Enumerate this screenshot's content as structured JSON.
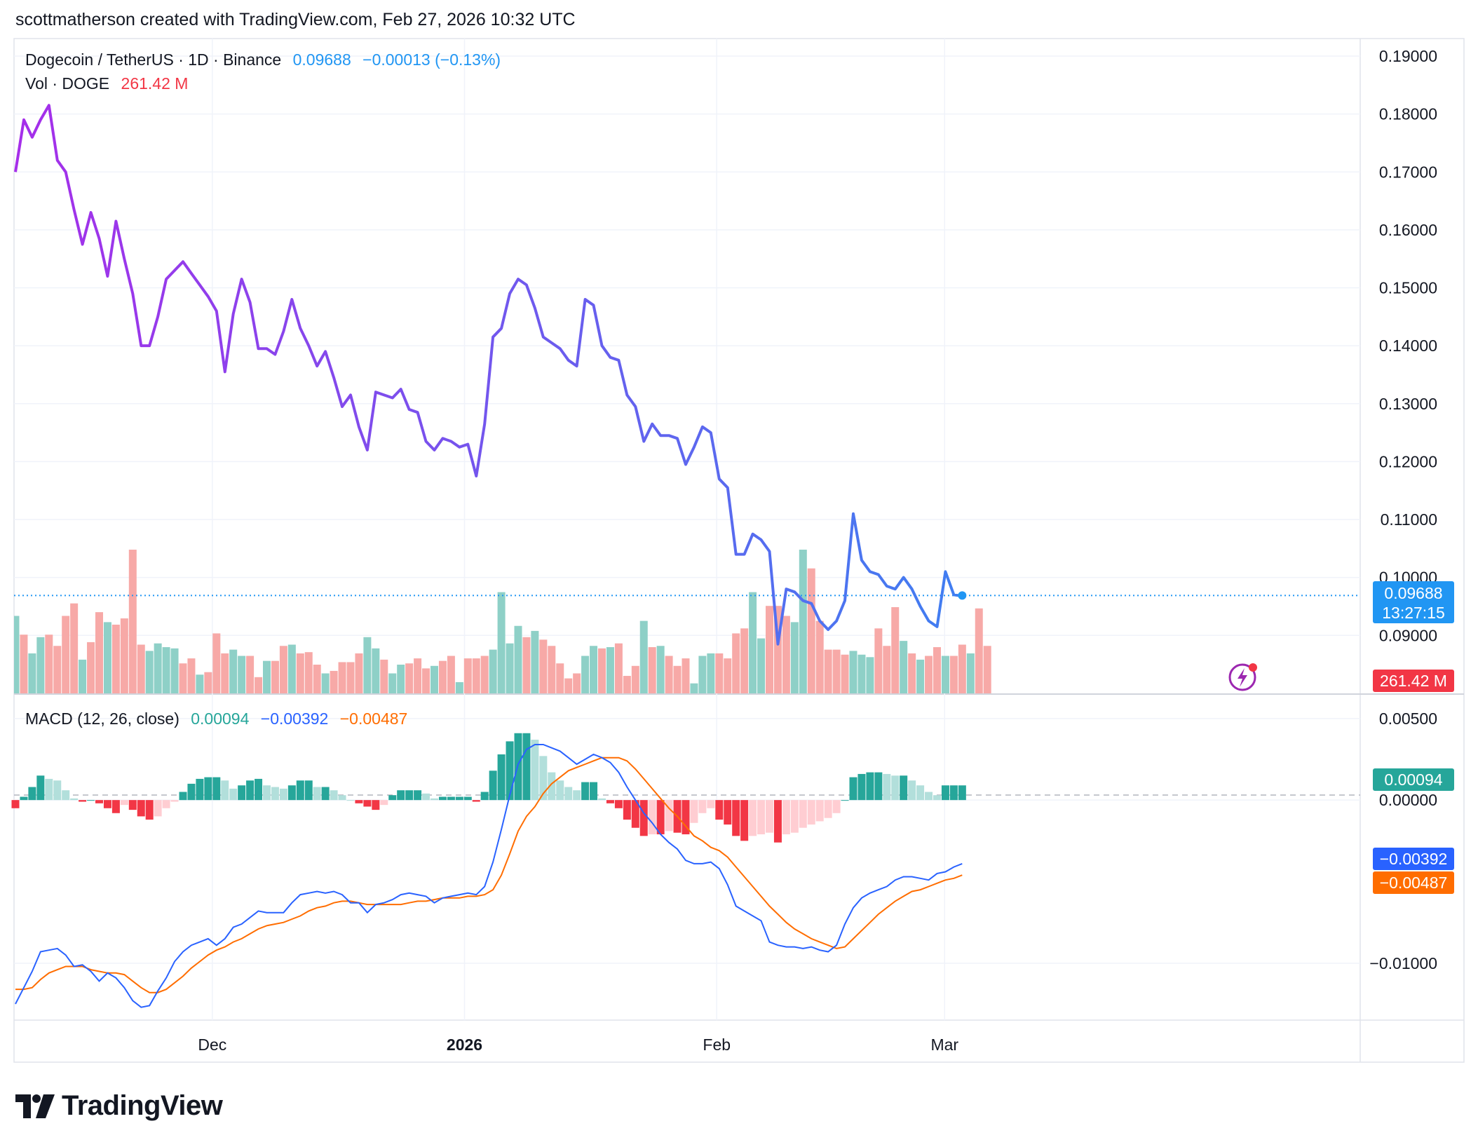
{
  "credit": "scottmatherson created with TradingView.com, Feb 27, 2026 10:32 UTC",
  "legend": {
    "symbol": "Dogecoin / TetherUS · 1D · Binance",
    "price": "0.09688",
    "change": "−0.00013 (−0.13%)",
    "vol_label": "Vol · DOGE",
    "vol_value": "261.42 M",
    "macd_label": "MACD (12, 26, close)",
    "macd_hist": "0.00094",
    "macd_line": "−0.00392",
    "macd_signal": "−0.00487"
  },
  "badges": {
    "price": "0.09688",
    "countdown": "13:27:15",
    "volume": "261.42 M",
    "hist": "0.00094",
    "macd": "−0.00392",
    "signal": "−0.00487"
  },
  "logo_text": "TradingView",
  "colors": {
    "up": "#26a69a",
    "down": "#f23645",
    "up_light": "#b2dfdb",
    "down_light": "#ffcdd2",
    "price_start": "#a62eea",
    "price_end": "#2196f3",
    "macd": "#2962ff",
    "signal": "#ff6d00"
  },
  "chart_data": [
    {
      "type": "line",
      "series_label": "Dogecoin / TetherUS · 1D · Binance",
      "x_axis": {
        "labels": [
          "Dec",
          "2026",
          "Feb",
          "Mar"
        ]
      },
      "y_axis": {
        "ticks": [
          "0.19000",
          "0.18000",
          "0.17000",
          "0.16000",
          "0.15000",
          "0.14000",
          "0.13000",
          "0.12000",
          "0.11000",
          "0.10000",
          "0.09000"
        ],
        "ylim": [
          0.08,
          0.19
        ]
      },
      "last_value": 0.09688,
      "values": [
        0.17,
        0.179,
        0.176,
        0.179,
        0.1815,
        0.172,
        0.17,
        0.1635,
        0.1575,
        0.163,
        0.1585,
        0.152,
        0.1615,
        0.155,
        0.149,
        0.14,
        0.14,
        0.145,
        0.1515,
        0.153,
        0.1545,
        0.1525,
        0.1505,
        0.1485,
        0.146,
        0.1355,
        0.1455,
        0.1515,
        0.1475,
        0.1395,
        0.1395,
        0.1385,
        0.1425,
        0.148,
        0.143,
        0.14,
        0.1365,
        0.139,
        0.1345,
        0.1295,
        0.1315,
        0.126,
        0.122,
        0.132,
        0.1315,
        0.131,
        0.1325,
        0.129,
        0.1285,
        0.1235,
        0.122,
        0.124,
        0.1235,
        0.1225,
        0.123,
        0.1175,
        0.1265,
        0.1415,
        0.143,
        0.149,
        0.1515,
        0.1505,
        0.1465,
        0.1415,
        0.1405,
        0.1395,
        0.1375,
        0.1365,
        0.148,
        0.147,
        0.14,
        0.138,
        0.1375,
        0.1315,
        0.1295,
        0.1235,
        0.1265,
        0.1245,
        0.1245,
        0.124,
        0.1195,
        0.1225,
        0.126,
        0.125,
        0.117,
        0.1155,
        0.104,
        0.104,
        0.1075,
        0.1065,
        0.1045,
        0.0885,
        0.098,
        0.0975,
        0.096,
        0.0955,
        0.0925,
        0.091,
        0.0925,
        0.096,
        0.111,
        0.103,
        0.101,
        0.1005,
        0.0985,
        0.098,
        0.1,
        0.098,
        0.095,
        0.0925,
        0.0915,
        0.101,
        0.097,
        0.0968
      ]
    },
    {
      "type": "bar",
      "series_label": "Vol · DOGE",
      "last_value": "261.42 M",
      "values": [
        62,
        47,
        32,
        45,
        47,
        38,
        62,
        72,
        27,
        41,
        65,
        57,
        55,
        60,
        115,
        39,
        34,
        40,
        37,
        36,
        24,
        28,
        15,
        17,
        48,
        32,
        35,
        30,
        30,
        13,
        26,
        26,
        38,
        39,
        32,
        33,
        23,
        16,
        18,
        25,
        25,
        32,
        45,
        36,
        27,
        16,
        23,
        24,
        28,
        20,
        22,
        26,
        30,
        9,
        28,
        28,
        30,
        35,
        81,
        40,
        54,
        45,
        50,
        43,
        38,
        24,
        12,
        16,
        30,
        38,
        36,
        37,
        40,
        14,
        22,
        58,
        37,
        38,
        30,
        22,
        28,
        8,
        30,
        32,
        32,
        28,
        48,
        52,
        81,
        44,
        70,
        70,
        62,
        57,
        115,
        100,
        58,
        35,
        35,
        31,
        34,
        31,
        29,
        52,
        38,
        69,
        42,
        32,
        27,
        30,
        37,
        30,
        30,
        39,
        32,
        68,
        38
      ],
      "up": [
        true,
        false,
        true,
        true,
        false,
        false,
        false,
        false,
        true,
        false,
        false,
        true,
        false,
        false,
        false,
        false,
        true,
        true,
        true,
        true,
        false,
        false,
        true,
        false,
        false,
        false,
        true,
        true,
        false,
        false,
        true,
        false,
        false,
        true,
        false,
        false,
        false,
        true,
        false,
        false,
        false,
        false,
        true,
        true,
        false,
        true,
        true,
        false,
        false,
        false,
        true,
        false,
        false,
        true,
        false,
        false,
        false,
        true,
        true,
        true,
        true,
        false,
        true,
        false,
        false,
        false,
        false,
        false,
        true,
        true,
        false,
        true,
        false,
        false,
        false,
        true,
        false,
        true,
        false,
        false,
        false,
        true,
        true,
        true,
        false,
        false,
        false,
        false,
        true,
        true,
        false,
        false,
        false,
        true,
        true,
        false,
        false,
        false,
        false,
        false,
        true,
        true,
        true,
        false,
        false,
        false,
        true,
        false,
        true,
        false,
        false,
        true,
        false,
        false,
        true,
        false,
        false
      ],
      "scale": {
        "axis_min": 0.08,
        "axis_max": 0.19,
        "note": "relative volume levels"
      }
    },
    {
      "type": "bar",
      "series_label": "MACD (12, 26, close)",
      "y_axis": {
        "ticks": [
          "0.00500",
          "0.00000",
          "−0.01000"
        ],
        "ylim": [
          -0.0125,
          0.00525
        ]
      },
      "histogram": [
        -0.0005,
        0.0002,
        0.0008,
        0.0015,
        0.0013,
        0.0012,
        0.0006,
        0.0001,
        -0.0001,
        0.0,
        -0.0002,
        -0.0005,
        -0.0008,
        -0.0003,
        -0.0006,
        -0.001,
        -0.0012,
        -0.001,
        -0.0005,
        -0.0001,
        0.0005,
        0.001,
        0.0013,
        0.0014,
        0.0014,
        0.0012,
        0.0007,
        0.0009,
        0.0012,
        0.0013,
        0.0009,
        0.0008,
        0.0007,
        0.0009,
        0.0012,
        0.0012,
        0.0008,
        0.0008,
        0.0006,
        0.0003,
        0.0,
        -0.0002,
        -0.0004,
        -0.0006,
        -0.0003,
        0.0003,
        0.0006,
        0.0006,
        0.0006,
        0.0004,
        0.0001,
        0.0002,
        0.0002,
        0.0002,
        0.0002,
        -0.0001,
        0.0005,
        0.0018,
        0.0028,
        0.0036,
        0.0041,
        0.0041,
        0.0037,
        0.0027,
        0.0017,
        0.0012,
        0.0008,
        0.0006,
        0.0011,
        0.0011,
        0.0001,
        -0.0002,
        -0.0005,
        -0.0012,
        -0.0017,
        -0.0022,
        -0.0021,
        -0.0021,
        -0.0019,
        -0.002,
        -0.0021,
        -0.0014,
        -0.0008,
        -0.0005,
        -0.0012,
        -0.0015,
        -0.0022,
        -0.0025,
        -0.0022,
        -0.0021,
        -0.002,
        -0.0026,
        -0.0021,
        -0.002,
        -0.0017,
        -0.0015,
        -0.0013,
        -0.0011,
        -0.0008,
        0.0,
        0.0014,
        0.0016,
        0.0017,
        0.0017,
        0.0016,
        0.0015,
        0.0015,
        0.0012,
        0.0009,
        0.0005,
        0.0003,
        0.0009,
        0.0009,
        0.0009
      ],
      "macd": [
        -0.0125,
        -0.0115,
        -0.0105,
        -0.0093,
        -0.0092,
        -0.0091,
        -0.0095,
        -0.0102,
        -0.0101,
        -0.0105,
        -0.0111,
        -0.0106,
        -0.0109,
        -0.0115,
        -0.0123,
        -0.0127,
        -0.0126,
        -0.0117,
        -0.0109,
        -0.0099,
        -0.0093,
        -0.0089,
        -0.0087,
        -0.0085,
        -0.0089,
        -0.0085,
        -0.0078,
        -0.0076,
        -0.0072,
        -0.0068,
        -0.0069,
        -0.0069,
        -0.0069,
        -0.0063,
        -0.0058,
        -0.0057,
        -0.0056,
        -0.0057,
        -0.0056,
        -0.0058,
        -0.0063,
        -0.0063,
        -0.0069,
        -0.0064,
        -0.0063,
        -0.0061,
        -0.0058,
        -0.0057,
        -0.0058,
        -0.0059,
        -0.0063,
        -0.006,
        -0.0059,
        -0.0058,
        -0.0057,
        -0.0058,
        -0.0053,
        -0.0038,
        -0.0018,
        0.0003,
        0.0022,
        0.0031,
        0.0034,
        0.0034,
        0.0032,
        0.003,
        0.0026,
        0.0022,
        0.0025,
        0.0028,
        0.0026,
        0.0023,
        0.0017,
        0.0008,
        0.0,
        -0.0008,
        -0.0014,
        -0.0021,
        -0.0026,
        -0.003,
        -0.0037,
        -0.0039,
        -0.0039,
        -0.0038,
        -0.0042,
        -0.0052,
        -0.0065,
        -0.0068,
        -0.0071,
        -0.0074,
        -0.0087,
        -0.0089,
        -0.009,
        -0.009,
        -0.0091,
        -0.009,
        -0.0092,
        -0.0093,
        -0.0089,
        -0.0076,
        -0.0066,
        -0.006,
        -0.0057,
        -0.0055,
        -0.0053,
        -0.0049,
        -0.0047,
        -0.0047,
        -0.0048,
        -0.0049,
        -0.0045,
        -0.0044,
        -0.0041,
        -0.0039
      ],
      "signal": [
        -0.0116,
        -0.0116,
        -0.0115,
        -0.011,
        -0.0106,
        -0.0104,
        -0.0102,
        -0.0102,
        -0.0102,
        -0.0104,
        -0.0105,
        -0.0106,
        -0.0106,
        -0.0107,
        -0.0111,
        -0.0115,
        -0.0118,
        -0.0118,
        -0.0116,
        -0.0112,
        -0.0108,
        -0.0103,
        -0.0099,
        -0.0095,
        -0.0092,
        -0.009,
        -0.0087,
        -0.0085,
        -0.0082,
        -0.0079,
        -0.0077,
        -0.0076,
        -0.0075,
        -0.0073,
        -0.0071,
        -0.0068,
        -0.0066,
        -0.0065,
        -0.0063,
        -0.0062,
        -0.0062,
        -0.0063,
        -0.0064,
        -0.0064,
        -0.0064,
        -0.0064,
        -0.0064,
        -0.0063,
        -0.0062,
        -0.0062,
        -0.0061,
        -0.006,
        -0.006,
        -0.006,
        -0.0059,
        -0.0059,
        -0.0058,
        -0.0055,
        -0.0046,
        -0.0033,
        -0.0019,
        -0.001,
        -0.0004,
        0.0004,
        0.001,
        0.0014,
        0.0018,
        0.002,
        0.0022,
        0.0024,
        0.0026,
        0.0026,
        0.0026,
        0.0024,
        0.0019,
        0.0013,
        0.0007,
        0.0001,
        -0.0005,
        -0.001,
        -0.0016,
        -0.0022,
        -0.0025,
        -0.0029,
        -0.0031,
        -0.0035,
        -0.0041,
        -0.0047,
        -0.0053,
        -0.0059,
        -0.0065,
        -0.007,
        -0.0075,
        -0.0079,
        -0.0082,
        -0.0085,
        -0.0087,
        -0.0089,
        -0.0091,
        -0.009,
        -0.0085,
        -0.008,
        -0.0075,
        -0.007,
        -0.0066,
        -0.0062,
        -0.0059,
        -0.0056,
        -0.0055,
        -0.0053,
        -0.0051,
        -0.0049,
        -0.0048,
        -0.0046
      ]
    }
  ]
}
